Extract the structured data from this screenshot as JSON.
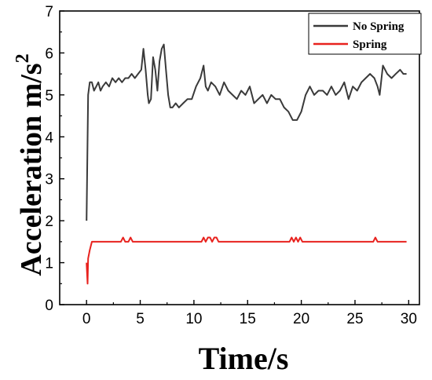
{
  "chart_data": {
    "type": "line",
    "xlabel": "Time/s",
    "ylabel_main": "Acceleration m/s",
    "ylabel_sup": "2",
    "xlim": [
      -2.5,
      31
    ],
    "ylim": [
      0,
      7
    ],
    "xticks": [
      0,
      5,
      10,
      15,
      20,
      25,
      30
    ],
    "yticks": [
      0,
      1,
      2,
      3,
      4,
      5,
      6,
      7
    ],
    "legend_position": "top-right",
    "series": [
      {
        "name": "No Spring",
        "color": "#3a3a3a",
        "x": [
          0,
          0.15,
          0.3,
          0.5,
          0.7,
          0.9,
          1.1,
          1.3,
          1.5,
          1.8,
          2.1,
          2.4,
          2.7,
          3.0,
          3.3,
          3.6,
          3.9,
          4.2,
          4.5,
          4.8,
          5.1,
          5.3,
          5.5,
          5.7,
          5.8,
          6.0,
          6.2,
          6.4,
          6.6,
          6.8,
          7.0,
          7.2,
          7.4,
          7.6,
          7.8,
          8.0,
          8.3,
          8.6,
          9.0,
          9.4,
          9.8,
          10.2,
          10.6,
          10.9,
          11.1,
          11.3,
          11.6,
          12.0,
          12.4,
          12.8,
          13.2,
          13.6,
          14.0,
          14.4,
          14.8,
          15.2,
          15.6,
          16.0,
          16.4,
          16.8,
          17.2,
          17.6,
          18.0,
          18.4,
          18.8,
          19.2,
          19.6,
          20.0,
          20.4,
          20.8,
          21.2,
          21.6,
          22.0,
          22.4,
          22.8,
          23.2,
          23.6,
          24.0,
          24.4,
          24.8,
          25.2,
          25.6,
          26.0,
          26.4,
          26.8,
          27.1,
          27.3,
          27.6,
          28.0,
          28.4,
          28.8,
          29.2,
          29.5,
          29.8
        ],
        "y": [
          2.0,
          5.0,
          5.3,
          5.3,
          5.1,
          5.2,
          5.3,
          5.1,
          5.2,
          5.3,
          5.2,
          5.4,
          5.3,
          5.4,
          5.3,
          5.4,
          5.4,
          5.5,
          5.4,
          5.5,
          5.6,
          6.1,
          5.6,
          5.0,
          4.8,
          4.9,
          5.9,
          5.6,
          5.1,
          5.8,
          6.1,
          6.2,
          5.6,
          5.0,
          4.7,
          4.7,
          4.8,
          4.7,
          4.8,
          4.9,
          4.9,
          5.2,
          5.4,
          5.7,
          5.2,
          5.1,
          5.3,
          5.2,
          5.0,
          5.3,
          5.1,
          5.0,
          4.9,
          5.1,
          5.0,
          5.2,
          4.8,
          4.9,
          5.0,
          4.8,
          5.0,
          4.9,
          4.9,
          4.7,
          4.6,
          4.4,
          4.4,
          4.6,
          5.0,
          5.2,
          5.0,
          5.1,
          5.1,
          5.0,
          5.2,
          5.0,
          5.1,
          5.3,
          4.9,
          5.2,
          5.1,
          5.3,
          5.4,
          5.5,
          5.4,
          5.2,
          5.0,
          5.7,
          5.5,
          5.4,
          5.5,
          5.6,
          5.5,
          5.5
        ]
      },
      {
        "name": "Spring",
        "color": "#e8221e",
        "x": [
          0,
          0.1,
          0.15,
          0.3,
          0.5,
          0.7,
          3.2,
          3.4,
          3.6,
          3.9,
          4.1,
          4.3,
          10.7,
          10.9,
          11.1,
          11.3,
          11.5,
          11.7,
          11.9,
          12.1,
          12.3,
          18.9,
          19.1,
          19.3,
          19.5,
          19.7,
          19.9,
          20.1,
          26.7,
          26.9,
          27.1,
          29.8
        ],
        "y": [
          1.0,
          0.5,
          1.1,
          1.3,
          1.5,
          1.5,
          1.5,
          1.6,
          1.5,
          1.5,
          1.6,
          1.5,
          1.5,
          1.6,
          1.5,
          1.6,
          1.6,
          1.5,
          1.6,
          1.6,
          1.5,
          1.5,
          1.6,
          1.5,
          1.6,
          1.5,
          1.6,
          1.5,
          1.5,
          1.6,
          1.5,
          1.5
        ]
      }
    ]
  }
}
